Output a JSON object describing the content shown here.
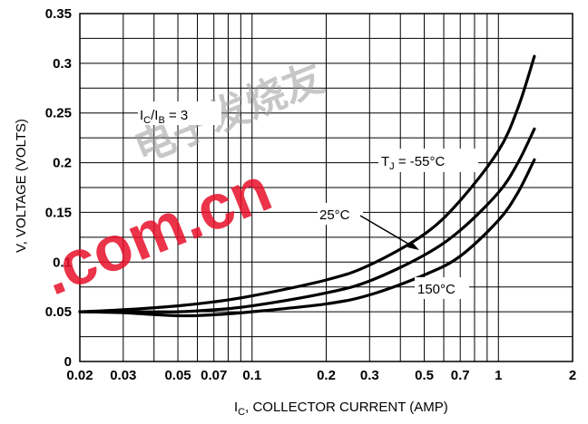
{
  "chart_data": {
    "type": "line",
    "scale": {
      "x": "log",
      "y": "linear"
    },
    "xlabel": {
      "main": "I",
      "sub": "C",
      "rest": ", COLLECTOR CURRENT (AMP)"
    },
    "ylabel": "V, VOLTAGE (VOLTS)",
    "xlim": [
      0.02,
      2
    ],
    "ylim": [
      0,
      0.35
    ],
    "grid": true,
    "x_ticks": [
      {
        "v": 0.02,
        "label": "0.02"
      },
      {
        "v": 0.03,
        "label": "0.03"
      },
      {
        "v": 0.05,
        "label": "0.05"
      },
      {
        "v": 0.07,
        "label": "0.07"
      },
      {
        "v": 0.1,
        "label": "0.1"
      },
      {
        "v": 0.2,
        "label": "0.2"
      },
      {
        "v": 0.3,
        "label": "0.3"
      },
      {
        "v": 0.5,
        "label": "0.5"
      },
      {
        "v": 0.7,
        "label": "0.7"
      },
      {
        "v": 1,
        "label": "1"
      },
      {
        "v": 2,
        "label": "2"
      }
    ],
    "x_grid": [
      0.02,
      0.03,
      0.04,
      0.05,
      0.06,
      0.07,
      0.08,
      0.09,
      0.1,
      0.2,
      0.3,
      0.4,
      0.5,
      0.6,
      0.7,
      0.8,
      0.9,
      1,
      2
    ],
    "y_ticks": [
      {
        "v": 0,
        "label": "0"
      },
      {
        "v": 0.05,
        "label": "0.05"
      },
      {
        "v": 0.1,
        "label": "0.1"
      },
      {
        "v": 0.15,
        "label": "0.15"
      },
      {
        "v": 0.2,
        "label": "0.2"
      },
      {
        "v": 0.25,
        "label": "0.25"
      },
      {
        "v": 0.3,
        "label": "0.3"
      },
      {
        "v": 0.35,
        "label": "0.35"
      }
    ],
    "y_grid": [
      0,
      0.025,
      0.05,
      0.075,
      0.1,
      0.125,
      0.15,
      0.175,
      0.2,
      0.225,
      0.25,
      0.275,
      0.3,
      0.325,
      0.35
    ],
    "series": [
      {
        "name": "T_J = -55°C",
        "x": [
          0.02,
          0.03,
          0.05,
          0.07,
          0.1,
          0.2,
          0.3,
          0.5,
          0.7,
          1.0,
          1.2,
          1.4
        ],
        "y": [
          0.05,
          0.052,
          0.056,
          0.06,
          0.066,
          0.082,
          0.097,
          0.128,
          0.162,
          0.212,
          0.255,
          0.307
        ]
      },
      {
        "name": "25°C",
        "x": [
          0.02,
          0.03,
          0.05,
          0.07,
          0.1,
          0.2,
          0.3,
          0.5,
          0.7,
          1.0,
          1.2,
          1.4
        ],
        "y": [
          0.05,
          0.05,
          0.05,
          0.052,
          0.056,
          0.069,
          0.081,
          0.107,
          0.132,
          0.17,
          0.2,
          0.234
        ]
      },
      {
        "name": "150°C",
        "x": [
          0.02,
          0.03,
          0.05,
          0.07,
          0.1,
          0.2,
          0.3,
          0.5,
          0.7,
          1.0,
          1.2,
          1.4
        ],
        "y": [
          0.05,
          0.049,
          0.046,
          0.047,
          0.05,
          0.058,
          0.067,
          0.087,
          0.106,
          0.142,
          0.17,
          0.203
        ]
      }
    ],
    "annotations": {
      "ratio": {
        "p1": "I",
        "s1": "C",
        "slash": "/I",
        "s2": "B",
        "rest": " = 3"
      },
      "tj": {
        "main": "T",
        "sub": "J",
        "rest": " = -55°C"
      },
      "t25": "25°C",
      "t150": "150°C"
    }
  },
  "watermark": {
    "text": ".com.cn",
    "cjk": "电子发烧友"
  },
  "colors": {
    "curve": "#000000",
    "grid": "#000000",
    "background": "#ffffff",
    "watermark": "#e8102a"
  }
}
